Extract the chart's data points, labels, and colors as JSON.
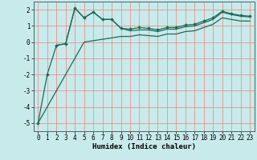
{
  "xlabel": "Humidex (Indice chaleur)",
  "bg_color": "#c8eaea",
  "line_color": "#1a6b5a",
  "grid_color": "#f08080",
  "xlim": [
    -0.5,
    23.5
  ],
  "ylim": [
    -5.5,
    2.5
  ],
  "yticks": [
    -5,
    -4,
    -3,
    -2,
    -1,
    0,
    1,
    2
  ],
  "xticks": [
    0,
    1,
    2,
    3,
    4,
    5,
    6,
    7,
    8,
    9,
    10,
    11,
    12,
    13,
    14,
    15,
    16,
    17,
    18,
    19,
    20,
    21,
    22,
    23
  ],
  "line1_x": [
    0,
    1,
    2,
    3,
    4,
    5,
    6,
    7,
    8,
    9,
    10,
    11,
    12,
    13,
    14,
    15,
    16,
    17,
    18,
    19,
    20,
    21,
    22,
    23
  ],
  "line1_y": [
    -5.0,
    -2.0,
    -0.2,
    -0.1,
    2.1,
    1.5,
    1.85,
    1.4,
    1.4,
    0.85,
    0.8,
    0.9,
    0.85,
    0.75,
    0.9,
    0.9,
    1.05,
    1.1,
    1.3,
    1.5,
    1.9,
    1.75,
    1.65,
    1.6
  ],
  "line2_x": [
    2,
    3,
    4,
    5,
    6,
    7,
    8,
    9,
    10,
    11,
    12,
    13,
    14,
    15,
    16,
    17,
    18,
    19,
    20,
    21,
    22,
    23
  ],
  "line2_y": [
    -0.2,
    -0.1,
    2.1,
    1.5,
    1.85,
    1.4,
    1.4,
    0.85,
    0.7,
    0.75,
    0.75,
    0.65,
    0.8,
    0.8,
    0.95,
    1.0,
    1.2,
    1.4,
    1.85,
    1.7,
    1.6,
    1.55
  ],
  "line3_x": [
    0,
    5,
    9,
    10,
    11,
    12,
    13,
    14,
    15,
    16,
    17,
    18,
    19,
    20,
    21,
    22,
    23
  ],
  "line3_y": [
    -5.0,
    0.0,
    0.35,
    0.35,
    0.45,
    0.4,
    0.35,
    0.5,
    0.5,
    0.65,
    0.7,
    0.9,
    1.1,
    1.5,
    1.4,
    1.3,
    1.3
  ],
  "tick_fontsize": 5.5,
  "xlabel_fontsize": 6.5,
  "marker_size": 2.0,
  "linewidth": 0.9
}
